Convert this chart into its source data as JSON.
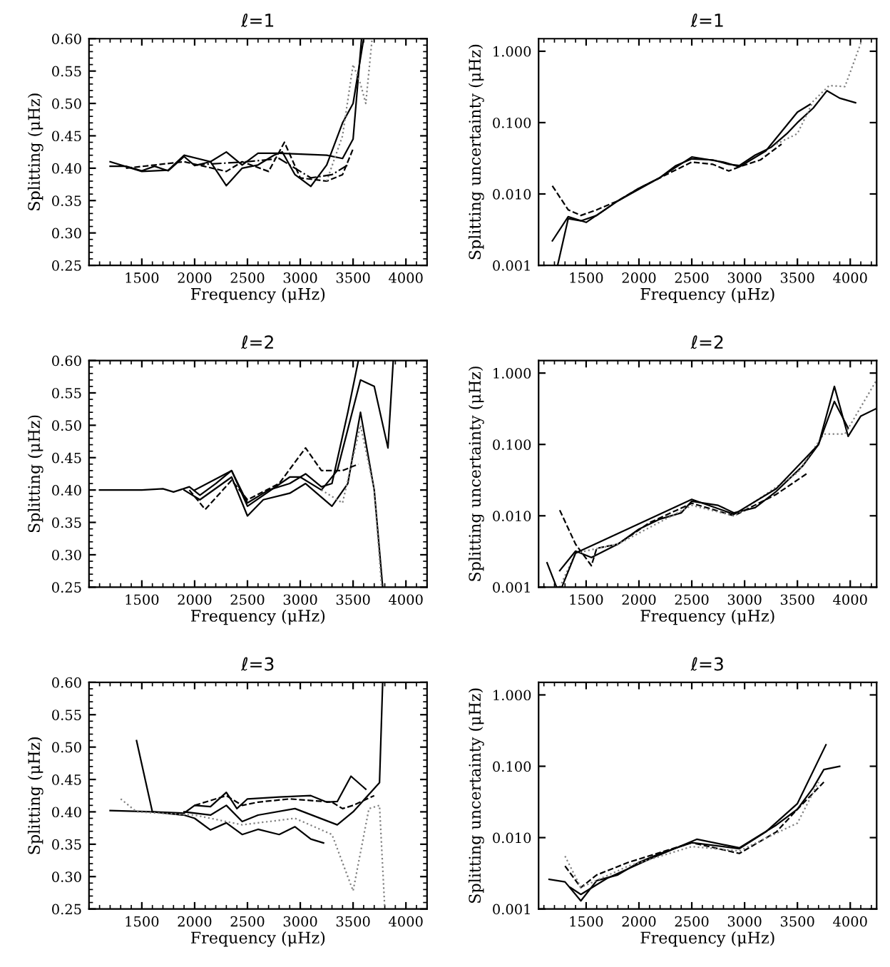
{
  "chart_data": [
    {
      "type": "line",
      "title": "ℓ=1",
      "xlabel": "Frequency (μHz)",
      "ylabel": "Splitting (μHz)",
      "xlim": [
        1000,
        4200
      ],
      "xticks": [
        1500,
        2000,
        2500,
        3000,
        3500,
        4000
      ],
      "ylim": [
        0.25,
        0.6
      ],
      "yticks": [
        {
          "value": 0.25,
          "label": "0.25"
        },
        {
          "value": 0.3,
          "label": "0.30"
        },
        {
          "value": 0.35,
          "label": "0.35"
        },
        {
          "value": 0.4,
          "label": "0.40"
        },
        {
          "value": 0.45,
          "label": "0.45"
        },
        {
          "value": 0.5,
          "label": "0.50"
        },
        {
          "value": 0.55,
          "label": "0.55"
        },
        {
          "value": 0.6,
          "label": "0.60"
        }
      ],
      "grid": false,
      "legend": false,
      "series": [
        {
          "color": "#000000",
          "line_style": "solid",
          "x": [
            1200,
            1350,
            1500,
            1620,
            1750,
            1900,
            2000,
            2150,
            2300,
            2450,
            2600,
            2750,
            2830,
            2950,
            3100,
            3250,
            3400,
            3500,
            3600
          ],
          "values": [
            0.403,
            0.403,
            0.396,
            0.403,
            0.396,
            0.418,
            0.404,
            0.41,
            0.373,
            0.4,
            0.405,
            0.42,
            0.425,
            0.39,
            0.372,
            0.405,
            0.47,
            0.5,
            0.6
          ]
        },
        {
          "color": "#000000",
          "line_style": "solid",
          "x": [
            1200,
            1500,
            1750,
            1900,
            2150,
            2300,
            2450,
            2600,
            2800,
            3250,
            3400,
            3500,
            3580
          ],
          "values": [
            0.41,
            0.395,
            0.397,
            0.42,
            0.41,
            0.425,
            0.405,
            0.423,
            0.423,
            0.42,
            0.415,
            0.445,
            0.6
          ]
        },
        {
          "color": "#000000",
          "line_style": "dashed",
          "x": [
            1350,
            1900,
            2300,
            2450,
            2700,
            2850,
            3000,
            3250,
            3400,
            3500
          ],
          "values": [
            0.4,
            0.41,
            0.395,
            0.41,
            0.395,
            0.44,
            0.385,
            0.38,
            0.39,
            0.43
          ]
        },
        {
          "color": "#808080",
          "line_style": "dotted",
          "x": [
            3250,
            3400,
            3500,
            3570,
            3620,
            3680
          ],
          "values": [
            0.38,
            0.45,
            0.56,
            0.53,
            0.5,
            0.6
          ]
        },
        {
          "color": "#000000",
          "line_style": "dashdot",
          "x": [
            2000,
            2500,
            2800,
            3100,
            3300,
            3450
          ],
          "values": [
            0.405,
            0.41,
            0.415,
            0.385,
            0.39,
            0.405
          ]
        }
      ]
    },
    {
      "type": "line",
      "title": "ℓ=1",
      "xlabel": "Frequency (μHz)",
      "ylabel": "Splitting uncertainty (μHz)",
      "log": true,
      "xlim": [
        1050,
        4250
      ],
      "xticks": [
        1500,
        2000,
        2500,
        3000,
        3500,
        4000
      ],
      "ylim": [
        0.001,
        1.5
      ],
      "yticks": [
        {
          "value": 0.001,
          "label": "0.001"
        },
        {
          "value": 0.01,
          "label": "0.010"
        },
        {
          "value": 0.1,
          "label": "0.100"
        },
        {
          "value": 1,
          "label": "1.000"
        }
      ],
      "grid": false,
      "legend": false,
      "series": [
        {
          "color": "#000000",
          "line_style": "solid",
          "x": [
            1230,
            1330,
            1450,
            1600,
            1800,
            2000,
            2200,
            2350,
            2500,
            2700,
            2850,
            2950,
            3100,
            3250,
            3400,
            3500,
            3650,
            3780,
            3900,
            4050
          ],
          "values": [
            0.001,
            0.0045,
            0.0042,
            0.005,
            0.008,
            0.012,
            0.017,
            0.025,
            0.031,
            0.03,
            0.026,
            0.025,
            0.035,
            0.045,
            0.07,
            0.1,
            0.16,
            0.28,
            0.22,
            0.19
          ]
        },
        {
          "color": "#000000",
          "line_style": "dashed",
          "x": [
            1180,
            1330,
            1450,
            1600,
            1800,
            2000,
            2300,
            2500,
            2700,
            2850,
            2950,
            3150,
            3350
          ],
          "values": [
            0.013,
            0.006,
            0.005,
            0.006,
            0.008,
            0.012,
            0.02,
            0.028,
            0.026,
            0.021,
            0.024,
            0.03,
            0.05
          ]
        },
        {
          "color": "#000000",
          "line_style": "solid",
          "x": [
            1180,
            1330,
            1500,
            1800,
            2200,
            2500,
            2800,
            2950,
            3200,
            3500,
            3620
          ],
          "values": [
            0.0022,
            0.0048,
            0.004,
            0.008,
            0.017,
            0.033,
            0.028,
            0.024,
            0.04,
            0.14,
            0.18
          ]
        },
        {
          "color": "#808080",
          "line_style": "dotted",
          "x": [
            3300,
            3500,
            3650,
            3800,
            3950,
            4100
          ],
          "values": [
            0.05,
            0.07,
            0.2,
            0.33,
            0.32,
            1.3
          ]
        }
      ]
    },
    {
      "type": "line",
      "title": "ℓ=2",
      "xlabel": "Frequency (μHz)",
      "ylabel": "Splitting (μHz)",
      "xlim": [
        1000,
        4200
      ],
      "xticks": [
        1500,
        2000,
        2500,
        3000,
        3500,
        4000
      ],
      "ylim": [
        0.25,
        0.6
      ],
      "yticks": [
        {
          "value": 0.25,
          "label": "0.25"
        },
        {
          "value": 0.3,
          "label": "0.30"
        },
        {
          "value": 0.35,
          "label": "0.35"
        },
        {
          "value": 0.4,
          "label": "0.40"
        },
        {
          "value": 0.45,
          "label": "0.45"
        },
        {
          "value": 0.5,
          "label": "0.50"
        },
        {
          "value": 0.55,
          "label": "0.55"
        },
        {
          "value": 0.6,
          "label": "0.60"
        }
      ],
      "grid": false,
      "legend": false,
      "series": [
        {
          "color": "#000000",
          "line_style": "solid",
          "x": [
            1100,
            1500,
            1700,
            1800,
            1950,
            2050,
            2200,
            2350,
            2500,
            2700,
            2900,
            3050,
            3200,
            3300,
            3450,
            3550
          ],
          "values": [
            0.4,
            0.4,
            0.402,
            0.397,
            0.405,
            0.392,
            0.41,
            0.43,
            0.38,
            0.4,
            0.41,
            0.425,
            0.405,
            0.41,
            0.52,
            0.6
          ]
        },
        {
          "color": "#000000",
          "line_style": "solid",
          "x": [
            1900,
            2050,
            2350,
            2500,
            2650,
            2900,
            3050,
            3300,
            3450,
            3570,
            3700,
            3780
          ],
          "values": [
            0.4,
            0.385,
            0.42,
            0.36,
            0.385,
            0.395,
            0.41,
            0.375,
            0.41,
            0.52,
            0.4,
            0.25
          ]
        },
        {
          "color": "#000000",
          "line_style": "solid",
          "x": [
            2000,
            2350,
            2500,
            2900,
            3000,
            3200,
            3350,
            3570,
            3700,
            3830,
            3880
          ],
          "values": [
            0.4,
            0.43,
            0.375,
            0.42,
            0.42,
            0.4,
            0.43,
            0.57,
            0.56,
            0.465,
            0.6
          ]
        },
        {
          "color": "#000000",
          "line_style": "dashed",
          "x": [
            1950,
            2100,
            2350,
            2500,
            2800,
            3050,
            3200,
            3400,
            3550
          ],
          "values": [
            0.4,
            0.37,
            0.415,
            0.385,
            0.41,
            0.465,
            0.43,
            0.43,
            0.44
          ]
        },
        {
          "color": "#808080",
          "line_style": "dotted",
          "x": [
            3200,
            3400,
            3570,
            3700,
            3770
          ],
          "values": [
            0.4,
            0.38,
            0.5,
            0.4,
            0.25
          ]
        }
      ]
    },
    {
      "type": "line",
      "title": "ℓ=2",
      "xlabel": "Frequency (μHz)",
      "ylabel": "Splitting uncertainty (μHz)",
      "log": true,
      "xlim": [
        1050,
        4250
      ],
      "xticks": [
        1500,
        2000,
        2500,
        3000,
        3500,
        4000
      ],
      "ylim": [
        0.001,
        1.5
      ],
      "yticks": [
        {
          "value": 0.001,
          "label": "0.001"
        },
        {
          "value": 0.01,
          "label": "0.010"
        },
        {
          "value": 0.1,
          "label": "0.100"
        },
        {
          "value": 1,
          "label": "1.000"
        }
      ],
      "grid": false,
      "legend": false,
      "series": [
        {
          "color": "#000000",
          "line_style": "solid",
          "x": [
            1250,
            1400,
            1550,
            1800,
            2000,
            2200,
            2400,
            2500,
            2750,
            2900,
            3100,
            3300,
            3550,
            3700,
            3850,
            3980,
            4100,
            4250
          ],
          "values": [
            0.0017,
            0.0032,
            0.0026,
            0.004,
            0.0065,
            0.009,
            0.011,
            0.016,
            0.014,
            0.011,
            0.013,
            0.022,
            0.05,
            0.1,
            0.65,
            0.13,
            0.25,
            0.32
          ]
        },
        {
          "color": "#000000",
          "line_style": "dashed",
          "x": [
            1250,
            1400,
            1550,
            1600,
            1800,
            2100,
            2500,
            2900,
            3300,
            3600
          ],
          "values": [
            0.012,
            0.004,
            0.002,
            0.0035,
            0.004,
            0.008,
            0.015,
            0.01,
            0.02,
            0.04
          ]
        },
        {
          "color": "#808080",
          "line_style": "dotted",
          "x": [
            1250,
            1400,
            1800,
            2500,
            2900,
            3500,
            3750,
            3950,
            4250
          ],
          "values": [
            0.001,
            0.003,
            0.004,
            0.014,
            0.01,
            0.04,
            0.14,
            0.14,
            0.8
          ]
        },
        {
          "color": "#000000",
          "line_style": "solid",
          "x": [
            1130,
            1220,
            1270,
            1400,
            2500,
            2900,
            3300,
            3700,
            3850,
            3980
          ],
          "values": [
            0.0022,
            0.001,
            0.001,
            0.003,
            0.017,
            0.0105,
            0.024,
            0.1,
            0.4,
            0.17
          ]
        }
      ]
    },
    {
      "type": "line",
      "title": "ℓ=3",
      "xlabel": "Frequency (μHz)",
      "ylabel": "Splitting (μHz)",
      "xlim": [
        1000,
        4200
      ],
      "xticks": [
        1500,
        2000,
        2500,
        3000,
        3500,
        4000
      ],
      "ylim": [
        0.25,
        0.6
      ],
      "yticks": [
        {
          "value": 0.25,
          "label": "0.25"
        },
        {
          "value": 0.3,
          "label": "0.30"
        },
        {
          "value": 0.35,
          "label": "0.35"
        },
        {
          "value": 0.4,
          "label": "0.40"
        },
        {
          "value": 0.45,
          "label": "0.45"
        },
        {
          "value": 0.5,
          "label": "0.50"
        },
        {
          "value": 0.55,
          "label": "0.55"
        },
        {
          "value": 0.6,
          "label": "0.60"
        }
      ],
      "grid": false,
      "legend": false,
      "series": [
        {
          "color": "#000000",
          "line_style": "solid",
          "x": [
            1200,
            1600,
            1900,
            2000,
            2150,
            2300,
            2400,
            2500,
            2800,
            3100,
            3250,
            3350,
            3480,
            3620
          ],
          "values": [
            0.402,
            0.4,
            0.398,
            0.41,
            0.408,
            0.43,
            0.405,
            0.42,
            0.423,
            0.425,
            0.415,
            0.416,
            0.455,
            0.435
          ]
        },
        {
          "color": "#000000",
          "line_style": "solid",
          "x": [
            1450,
            1600,
            1900,
            2000,
            2150,
            2300,
            2450,
            2600,
            2800,
            2950,
            3100,
            3220
          ],
          "values": [
            0.51,
            0.4,
            0.395,
            0.39,
            0.372,
            0.383,
            0.365,
            0.373,
            0.365,
            0.377,
            0.358,
            0.352
          ]
        },
        {
          "color": "#000000",
          "line_style": "solid",
          "x": [
            1900,
            2150,
            2300,
            2450,
            2600,
            2950,
            3350,
            3500,
            3750,
            3780
          ],
          "values": [
            0.4,
            0.395,
            0.41,
            0.385,
            0.395,
            0.405,
            0.38,
            0.4,
            0.445,
            0.6
          ]
        },
        {
          "color": "#000000",
          "line_style": "dashed",
          "x": [
            2000,
            2300,
            2450,
            2600,
            2900,
            3300,
            3400,
            3500,
            3700
          ],
          "values": [
            0.41,
            0.425,
            0.41,
            0.415,
            0.42,
            0.415,
            0.405,
            0.41,
            0.425
          ]
        },
        {
          "color": "#808080",
          "line_style": "dotted",
          "x": [
            1300,
            1450,
            2000,
            2450,
            2950,
            3300,
            3500,
            3650,
            3750,
            3800
          ],
          "values": [
            0.42,
            0.4,
            0.395,
            0.38,
            0.39,
            0.365,
            0.278,
            0.405,
            0.41,
            0.25
          ]
        }
      ]
    },
    {
      "type": "line",
      "title": "ℓ=3",
      "xlabel": "Frequency (μHz)",
      "ylabel": "Splitting uncertainty (μHz)",
      "log": true,
      "xlim": [
        1050,
        4250
      ],
      "xticks": [
        1500,
        2000,
        2500,
        3000,
        3500,
        4000
      ],
      "ylim": [
        0.001,
        1.5
      ],
      "yticks": [
        {
          "value": 0.001,
          "label": "0.001"
        },
        {
          "value": 0.01,
          "label": "0.010"
        },
        {
          "value": 0.1,
          "label": "0.100"
        },
        {
          "value": 1,
          "label": "1.000"
        }
      ],
      "grid": false,
      "legend": false,
      "series": [
        {
          "color": "#000000",
          "line_style": "solid",
          "x": [
            1150,
            1300,
            1450,
            1600,
            1800,
            2000,
            2200,
            2500,
            2950,
            3200,
            3500,
            3770
          ],
          "values": [
            0.0026,
            0.0024,
            0.0013,
            0.0025,
            0.003,
            0.0045,
            0.006,
            0.0085,
            0.007,
            0.012,
            0.03,
            0.2
          ]
        },
        {
          "color": "#000000",
          "line_style": "solid",
          "x": [
            1350,
            1450,
            1700,
            2100,
            2550,
            2950,
            3300,
            3500,
            3650,
            3750,
            3900
          ],
          "values": [
            0.002,
            0.0016,
            0.0027,
            0.005,
            0.0095,
            0.0072,
            0.015,
            0.025,
            0.05,
            0.09,
            0.1
          ]
        },
        {
          "color": "#000000",
          "line_style": "dashed",
          "x": [
            1300,
            1450,
            1600,
            1900,
            2500,
            2950,
            3300,
            3500,
            3750
          ],
          "values": [
            0.004,
            0.002,
            0.003,
            0.0045,
            0.0085,
            0.006,
            0.012,
            0.025,
            0.06
          ]
        },
        {
          "color": "#808080",
          "line_style": "dotted",
          "x": [
            1300,
            1450,
            1900,
            2500,
            2950,
            3500,
            3700
          ],
          "values": [
            0.0055,
            0.002,
            0.004,
            0.0075,
            0.0065,
            0.016,
            0.06
          ]
        }
      ]
    }
  ]
}
